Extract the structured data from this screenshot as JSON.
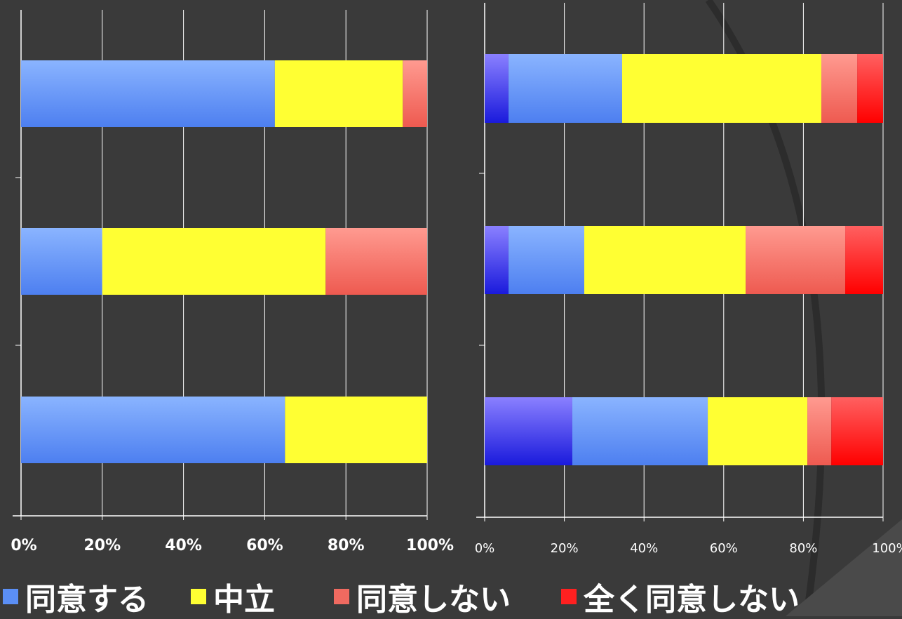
{
  "colors": {
    "background": "#3a3a3a",
    "agree_light": "#8ab4ff",
    "agree_dark": "#4d7ff0",
    "strong_agree_light": "#8a80ff",
    "strong_agree_dark": "#1a1adc",
    "neutral": "#ffff33",
    "disagree_light": "#ff9a90",
    "disagree_dark": "#ee5a50",
    "strong_disagree_light": "#ff6060",
    "strong_disagree_dark": "#ff0000",
    "grid": "#ffffff"
  },
  "legend": {
    "items": [
      {
        "label": "同意する",
        "color": "#5b8ff5"
      },
      {
        "label": "中立",
        "color": "#ffff33"
      },
      {
        "label": "同意しない",
        "color": "#f06a60"
      },
      {
        "label": "全く同意しない",
        "color": "#ff2020"
      }
    ]
  },
  "chart_data": [
    {
      "type": "bar",
      "orientation": "horizontal",
      "stacked": true,
      "title": "",
      "xlabel": "",
      "ylabel": "",
      "xlim": [
        0,
        100
      ],
      "x_ticks": [
        "0%",
        "20%",
        "40%",
        "60%",
        "80%",
        "100%"
      ],
      "categories": [
        "",
        "",
        ""
      ],
      "series": [
        {
          "key": "agree",
          "values": [
            62.5,
            20,
            65
          ]
        },
        {
          "key": "neutral",
          "values": [
            31.5,
            55,
            35
          ]
        },
        {
          "key": "disagree",
          "values": [
            6,
            25,
            0
          ]
        }
      ],
      "grid": true
    },
    {
      "type": "bar",
      "orientation": "horizontal",
      "stacked": true,
      "title": "",
      "xlabel": "",
      "ylabel": "",
      "xlim": [
        0,
        100
      ],
      "x_ticks": [
        "0%",
        "20%",
        "40%",
        "60%",
        "80%",
        "100%"
      ],
      "categories": [
        "",
        "",
        ""
      ],
      "series": [
        {
          "key": "strong_agree",
          "values": [
            6,
            6,
            22
          ]
        },
        {
          "key": "agree",
          "values": [
            28.5,
            19,
            34
          ]
        },
        {
          "key": "neutral",
          "values": [
            50,
            40.5,
            25
          ]
        },
        {
          "key": "disagree",
          "values": [
            9,
            25,
            6
          ]
        },
        {
          "key": "strong_disagree",
          "values": [
            6.5,
            9.5,
            13
          ]
        }
      ],
      "grid": true
    }
  ]
}
